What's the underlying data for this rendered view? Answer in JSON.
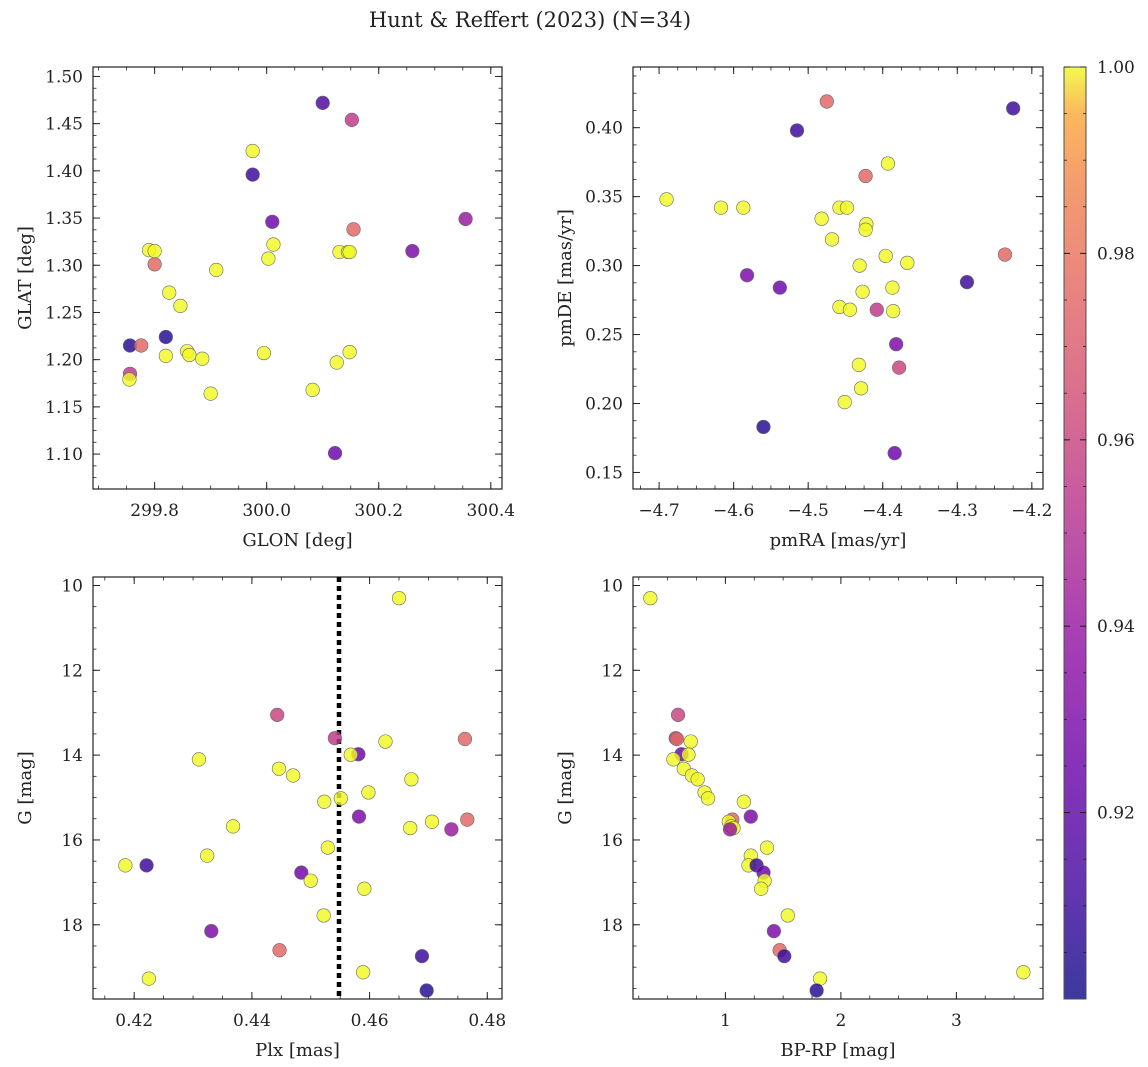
{
  "figure_title": "Hunt & Reffert (2023) (N=34)",
  "colorbar": {
    "min": 0.9,
    "max": 1.0,
    "ticks": [
      0.92,
      0.94,
      0.96,
      0.98,
      1.0
    ],
    "tick_labels": [
      "0.92",
      "0.94",
      "0.96",
      "0.98",
      "1.00"
    ],
    "colormap": "plasma"
  },
  "chart_data": [
    {
      "id": "glon-glat",
      "type": "scatter",
      "xlabel": "GLON [deg]",
      "ylabel": "GLAT [deg]",
      "xlim": [
        299.69,
        300.42
      ],
      "ylim": [
        1.063,
        1.51
      ],
      "x_ticks": [
        299.8,
        300.0,
        300.2,
        300.4
      ],
      "x_tick_labels": [
        "299.8",
        "300.0",
        "300.2",
        "300.4"
      ],
      "y_ticks": [
        1.1,
        1.15,
        1.2,
        1.25,
        1.3,
        1.35,
        1.4,
        1.45,
        1.5
      ],
      "y_tick_labels": [
        "1.10",
        "1.15",
        "1.20",
        "1.25",
        "1.30",
        "1.35",
        "1.40",
        "1.45",
        "1.50"
      ],
      "points": [
        {
          "x": 300.1,
          "y": 1.472,
          "c": 0.915
        },
        {
          "x": 300.152,
          "y": 1.454,
          "c": 0.955
        },
        {
          "x": 299.975,
          "y": 1.421,
          "c": 1.0
        },
        {
          "x": 299.975,
          "y": 1.396,
          "c": 0.91
        },
        {
          "x": 300.355,
          "y": 1.349,
          "c": 0.94
        },
        {
          "x": 300.01,
          "y": 1.346,
          "c": 0.925
        },
        {
          "x": 300.155,
          "y": 1.338,
          "c": 0.975
        },
        {
          "x": 300.012,
          "y": 1.322,
          "c": 1.0
        },
        {
          "x": 299.79,
          "y": 1.316,
          "c": 1.0
        },
        {
          "x": 299.8,
          "y": 1.315,
          "c": 1.0
        },
        {
          "x": 300.13,
          "y": 1.314,
          "c": 1.0
        },
        {
          "x": 300.145,
          "y": 1.314,
          "c": 1.0
        },
        {
          "x": 300.148,
          "y": 1.314,
          "c": 1.0
        },
        {
          "x": 300.26,
          "y": 1.315,
          "c": 0.93
        },
        {
          "x": 300.003,
          "y": 1.307,
          "c": 1.0
        },
        {
          "x": 299.8,
          "y": 1.301,
          "c": 0.975
        },
        {
          "x": 299.91,
          "y": 1.295,
          "c": 1.0
        },
        {
          "x": 299.826,
          "y": 1.271,
          "c": 1.0
        },
        {
          "x": 299.846,
          "y": 1.257,
          "c": 1.0
        },
        {
          "x": 299.82,
          "y": 1.224,
          "c": 0.905
        },
        {
          "x": 299.756,
          "y": 1.215,
          "c": 0.905
        },
        {
          "x": 299.776,
          "y": 1.215,
          "c": 0.975
        },
        {
          "x": 299.858,
          "y": 1.209,
          "c": 1.0
        },
        {
          "x": 300.148,
          "y": 1.208,
          "c": 1.0
        },
        {
          "x": 299.995,
          "y": 1.207,
          "c": 1.0
        },
        {
          "x": 299.862,
          "y": 1.205,
          "c": 1.0
        },
        {
          "x": 299.82,
          "y": 1.204,
          "c": 1.0
        },
        {
          "x": 299.885,
          "y": 1.201,
          "c": 1.0
        },
        {
          "x": 300.125,
          "y": 1.197,
          "c": 1.0
        },
        {
          "x": 299.756,
          "y": 1.185,
          "c": 0.955
        },
        {
          "x": 299.755,
          "y": 1.179,
          "c": 1.0
        },
        {
          "x": 300.082,
          "y": 1.168,
          "c": 1.0
        },
        {
          "x": 299.9,
          "y": 1.164,
          "c": 1.0
        },
        {
          "x": 300.122,
          "y": 1.101,
          "c": 0.925
        }
      ]
    },
    {
      "id": "pmra-pmde",
      "type": "scatter",
      "xlabel": "pmRA [mas/yr]",
      "ylabel": "pmDE [mas/yr]",
      "xlim": [
        -4.735,
        -4.185
      ],
      "ylim": [
        0.138,
        0.444
      ],
      "x_ticks": [
        -4.7,
        -4.6,
        -4.5,
        -4.4,
        -4.3,
        -4.2
      ],
      "x_tick_labels": [
        "−4.7",
        "−4.6",
        "−4.5",
        "−4.4",
        "−4.3",
        "−4.2"
      ],
      "y_ticks": [
        0.15,
        0.2,
        0.25,
        0.3,
        0.35,
        0.4
      ],
      "y_tick_labels": [
        "0.15",
        "0.20",
        "0.25",
        "0.30",
        "0.35",
        "0.40"
      ],
      "points": [
        {
          "x": -4.475,
          "y": 0.419,
          "c": 0.975
        },
        {
          "x": -4.225,
          "y": 0.414,
          "c": 0.91
        },
        {
          "x": -4.515,
          "y": 0.398,
          "c": 0.91
        },
        {
          "x": -4.393,
          "y": 0.374,
          "c": 1.0
        },
        {
          "x": -4.423,
          "y": 0.365,
          "c": 0.975
        },
        {
          "x": -4.69,
          "y": 0.348,
          "c": 1.0
        },
        {
          "x": -4.617,
          "y": 0.342,
          "c": 1.0
        },
        {
          "x": -4.587,
          "y": 0.342,
          "c": 1.0
        },
        {
          "x": -4.458,
          "y": 0.342,
          "c": 1.0
        },
        {
          "x": -4.448,
          "y": 0.342,
          "c": 1.0
        },
        {
          "x": -4.482,
          "y": 0.334,
          "c": 1.0
        },
        {
          "x": -4.422,
          "y": 0.33,
          "c": 1.0
        },
        {
          "x": -4.423,
          "y": 0.326,
          "c": 1.0
        },
        {
          "x": -4.468,
          "y": 0.319,
          "c": 1.0
        },
        {
          "x": -4.236,
          "y": 0.308,
          "c": 0.975
        },
        {
          "x": -4.396,
          "y": 0.307,
          "c": 1.0
        },
        {
          "x": -4.367,
          "y": 0.302,
          "c": 1.0
        },
        {
          "x": -4.431,
          "y": 0.3,
          "c": 1.0
        },
        {
          "x": -4.582,
          "y": 0.293,
          "c": 0.93
        },
        {
          "x": -4.287,
          "y": 0.288,
          "c": 0.91
        },
        {
          "x": -4.538,
          "y": 0.284,
          "c": 0.925
        },
        {
          "x": -4.387,
          "y": 0.284,
          "c": 1.0
        },
        {
          "x": -4.427,
          "y": 0.281,
          "c": 1.0
        },
        {
          "x": -4.458,
          "y": 0.27,
          "c": 1.0
        },
        {
          "x": -4.444,
          "y": 0.268,
          "c": 1.0
        },
        {
          "x": -4.408,
          "y": 0.268,
          "c": 0.955
        },
        {
          "x": -4.386,
          "y": 0.267,
          "c": 1.0
        },
        {
          "x": -4.382,
          "y": 0.243,
          "c": 0.93
        },
        {
          "x": -4.432,
          "y": 0.228,
          "c": 1.0
        },
        {
          "x": -4.378,
          "y": 0.226,
          "c": 0.96
        },
        {
          "x": -4.429,
          "y": 0.211,
          "c": 1.0
        },
        {
          "x": -4.451,
          "y": 0.201,
          "c": 1.0
        },
        {
          "x": -4.56,
          "y": 0.183,
          "c": 0.905
        },
        {
          "x": -4.384,
          "y": 0.164,
          "c": 0.925
        }
      ]
    },
    {
      "id": "plx-g",
      "type": "scatter",
      "xlabel": "Plx [mas]",
      "ylabel": "G [mag]",
      "xlim": [
        0.413,
        0.4825
      ],
      "ylim": [
        19.75,
        9.8
      ],
      "x_ticks": [
        0.42,
        0.44,
        0.46,
        0.48
      ],
      "x_tick_labels": [
        "0.42",
        "0.44",
        "0.46",
        "0.48"
      ],
      "y_ticks": [
        10,
        12,
        14,
        16,
        18
      ],
      "y_tick_labels": [
        "10",
        "12",
        "14",
        "16",
        "18"
      ],
      "vline": {
        "x": 0.4548,
        "style": "dotted",
        "color": "#000000"
      },
      "points": [
        {
          "x": 0.465,
          "y": 10.3,
          "c": 1.0
        },
        {
          "x": 0.4443,
          "y": 13.05,
          "c": 0.96
        },
        {
          "x": 0.4541,
          "y": 13.6,
          "c": 0.955
        },
        {
          "x": 0.4762,
          "y": 13.62,
          "c": 0.975
        },
        {
          "x": 0.4627,
          "y": 13.68,
          "c": 1.0
        },
        {
          "x": 0.4581,
          "y": 13.98,
          "c": 0.925
        },
        {
          "x": 0.4568,
          "y": 13.99,
          "c": 1.0
        },
        {
          "x": 0.431,
          "y": 14.1,
          "c": 1.0
        },
        {
          "x": 0.4446,
          "y": 14.32,
          "c": 1.0
        },
        {
          "x": 0.447,
          "y": 14.48,
          "c": 1.0
        },
        {
          "x": 0.4671,
          "y": 14.57,
          "c": 1.0
        },
        {
          "x": 0.4598,
          "y": 14.88,
          "c": 1.0
        },
        {
          "x": 0.4551,
          "y": 15.02,
          "c": 1.0
        },
        {
          "x": 0.4523,
          "y": 15.1,
          "c": 1.0
        },
        {
          "x": 0.4582,
          "y": 15.45,
          "c": 0.93
        },
        {
          "x": 0.4766,
          "y": 15.52,
          "c": 0.975
        },
        {
          "x": 0.4706,
          "y": 15.57,
          "c": 1.0
        },
        {
          "x": 0.4368,
          "y": 15.68,
          "c": 1.0
        },
        {
          "x": 0.4669,
          "y": 15.72,
          "c": 1.0
        },
        {
          "x": 0.4739,
          "y": 15.75,
          "c": 0.94
        },
        {
          "x": 0.4529,
          "y": 16.18,
          "c": 1.0
        },
        {
          "x": 0.4324,
          "y": 16.37,
          "c": 1.0
        },
        {
          "x": 0.4185,
          "y": 16.6,
          "c": 1.0
        },
        {
          "x": 0.4221,
          "y": 16.6,
          "c": 0.91
        },
        {
          "x": 0.4484,
          "y": 16.77,
          "c": 0.925
        },
        {
          "x": 0.45,
          "y": 16.96,
          "c": 1.0
        },
        {
          "x": 0.4591,
          "y": 17.15,
          "c": 1.0
        },
        {
          "x": 0.4522,
          "y": 17.78,
          "c": 1.0
        },
        {
          "x": 0.4331,
          "y": 18.15,
          "c": 0.93
        },
        {
          "x": 0.4447,
          "y": 18.6,
          "c": 0.975
        },
        {
          "x": 0.4689,
          "y": 18.74,
          "c": 0.91
        },
        {
          "x": 0.4589,
          "y": 19.12,
          "c": 1.0
        },
        {
          "x": 0.4225,
          "y": 19.27,
          "c": 1.0
        },
        {
          "x": 0.4697,
          "y": 19.55,
          "c": 0.905
        }
      ]
    },
    {
      "id": "bprp-g",
      "type": "scatter",
      "xlabel": "BP-RP [mag]",
      "ylabel": "G [mag]",
      "xlim": [
        0.2,
        3.75
      ],
      "ylim": [
        19.75,
        9.8
      ],
      "x_ticks": [
        1,
        2,
        3
      ],
      "x_tick_labels": [
        "1",
        "2",
        "3"
      ],
      "y_ticks": [
        10,
        12,
        14,
        16,
        18
      ],
      "y_tick_labels": [
        "10",
        "12",
        "14",
        "16",
        "18"
      ],
      "points": [
        {
          "x": 0.35,
          "y": 10.3,
          "c": 1.0
        },
        {
          "x": 0.59,
          "y": 13.05,
          "c": 0.96
        },
        {
          "x": 0.57,
          "y": 13.6,
          "c": 0.955
        },
        {
          "x": 0.58,
          "y": 13.62,
          "c": 0.975
        },
        {
          "x": 0.7,
          "y": 13.68,
          "c": 1.0
        },
        {
          "x": 0.62,
          "y": 13.98,
          "c": 0.925
        },
        {
          "x": 0.68,
          "y": 13.99,
          "c": 1.0
        },
        {
          "x": 0.55,
          "y": 14.1,
          "c": 1.0
        },
        {
          "x": 0.64,
          "y": 14.32,
          "c": 1.0
        },
        {
          "x": 0.71,
          "y": 14.48,
          "c": 1.0
        },
        {
          "x": 0.76,
          "y": 14.57,
          "c": 1.0
        },
        {
          "x": 0.82,
          "y": 14.88,
          "c": 1.0
        },
        {
          "x": 0.85,
          "y": 15.02,
          "c": 1.0
        },
        {
          "x": 1.16,
          "y": 15.1,
          "c": 1.0
        },
        {
          "x": 1.22,
          "y": 15.45,
          "c": 0.93
        },
        {
          "x": 1.06,
          "y": 15.52,
          "c": 0.975
        },
        {
          "x": 1.03,
          "y": 15.57,
          "c": 1.0
        },
        {
          "x": 1.05,
          "y": 15.68,
          "c": 1.0
        },
        {
          "x": 1.07,
          "y": 15.72,
          "c": 1.0
        },
        {
          "x": 1.04,
          "y": 15.75,
          "c": 0.94
        },
        {
          "x": 1.36,
          "y": 16.18,
          "c": 1.0
        },
        {
          "x": 1.22,
          "y": 16.37,
          "c": 1.0
        },
        {
          "x": 1.2,
          "y": 16.6,
          "c": 1.0
        },
        {
          "x": 1.27,
          "y": 16.6,
          "c": 0.91
        },
        {
          "x": 1.33,
          "y": 16.77,
          "c": 0.925
        },
        {
          "x": 1.34,
          "y": 16.96,
          "c": 1.0
        },
        {
          "x": 1.31,
          "y": 17.15,
          "c": 1.0
        },
        {
          "x": 1.54,
          "y": 17.78,
          "c": 1.0
        },
        {
          "x": 1.42,
          "y": 18.15,
          "c": 0.93
        },
        {
          "x": 1.47,
          "y": 18.6,
          "c": 0.975
        },
        {
          "x": 1.51,
          "y": 18.74,
          "c": 0.91
        },
        {
          "x": 3.58,
          "y": 19.12,
          "c": 1.0
        },
        {
          "x": 1.82,
          "y": 19.27,
          "c": 1.0
        },
        {
          "x": 1.79,
          "y": 19.55,
          "c": 0.905
        }
      ]
    }
  ]
}
